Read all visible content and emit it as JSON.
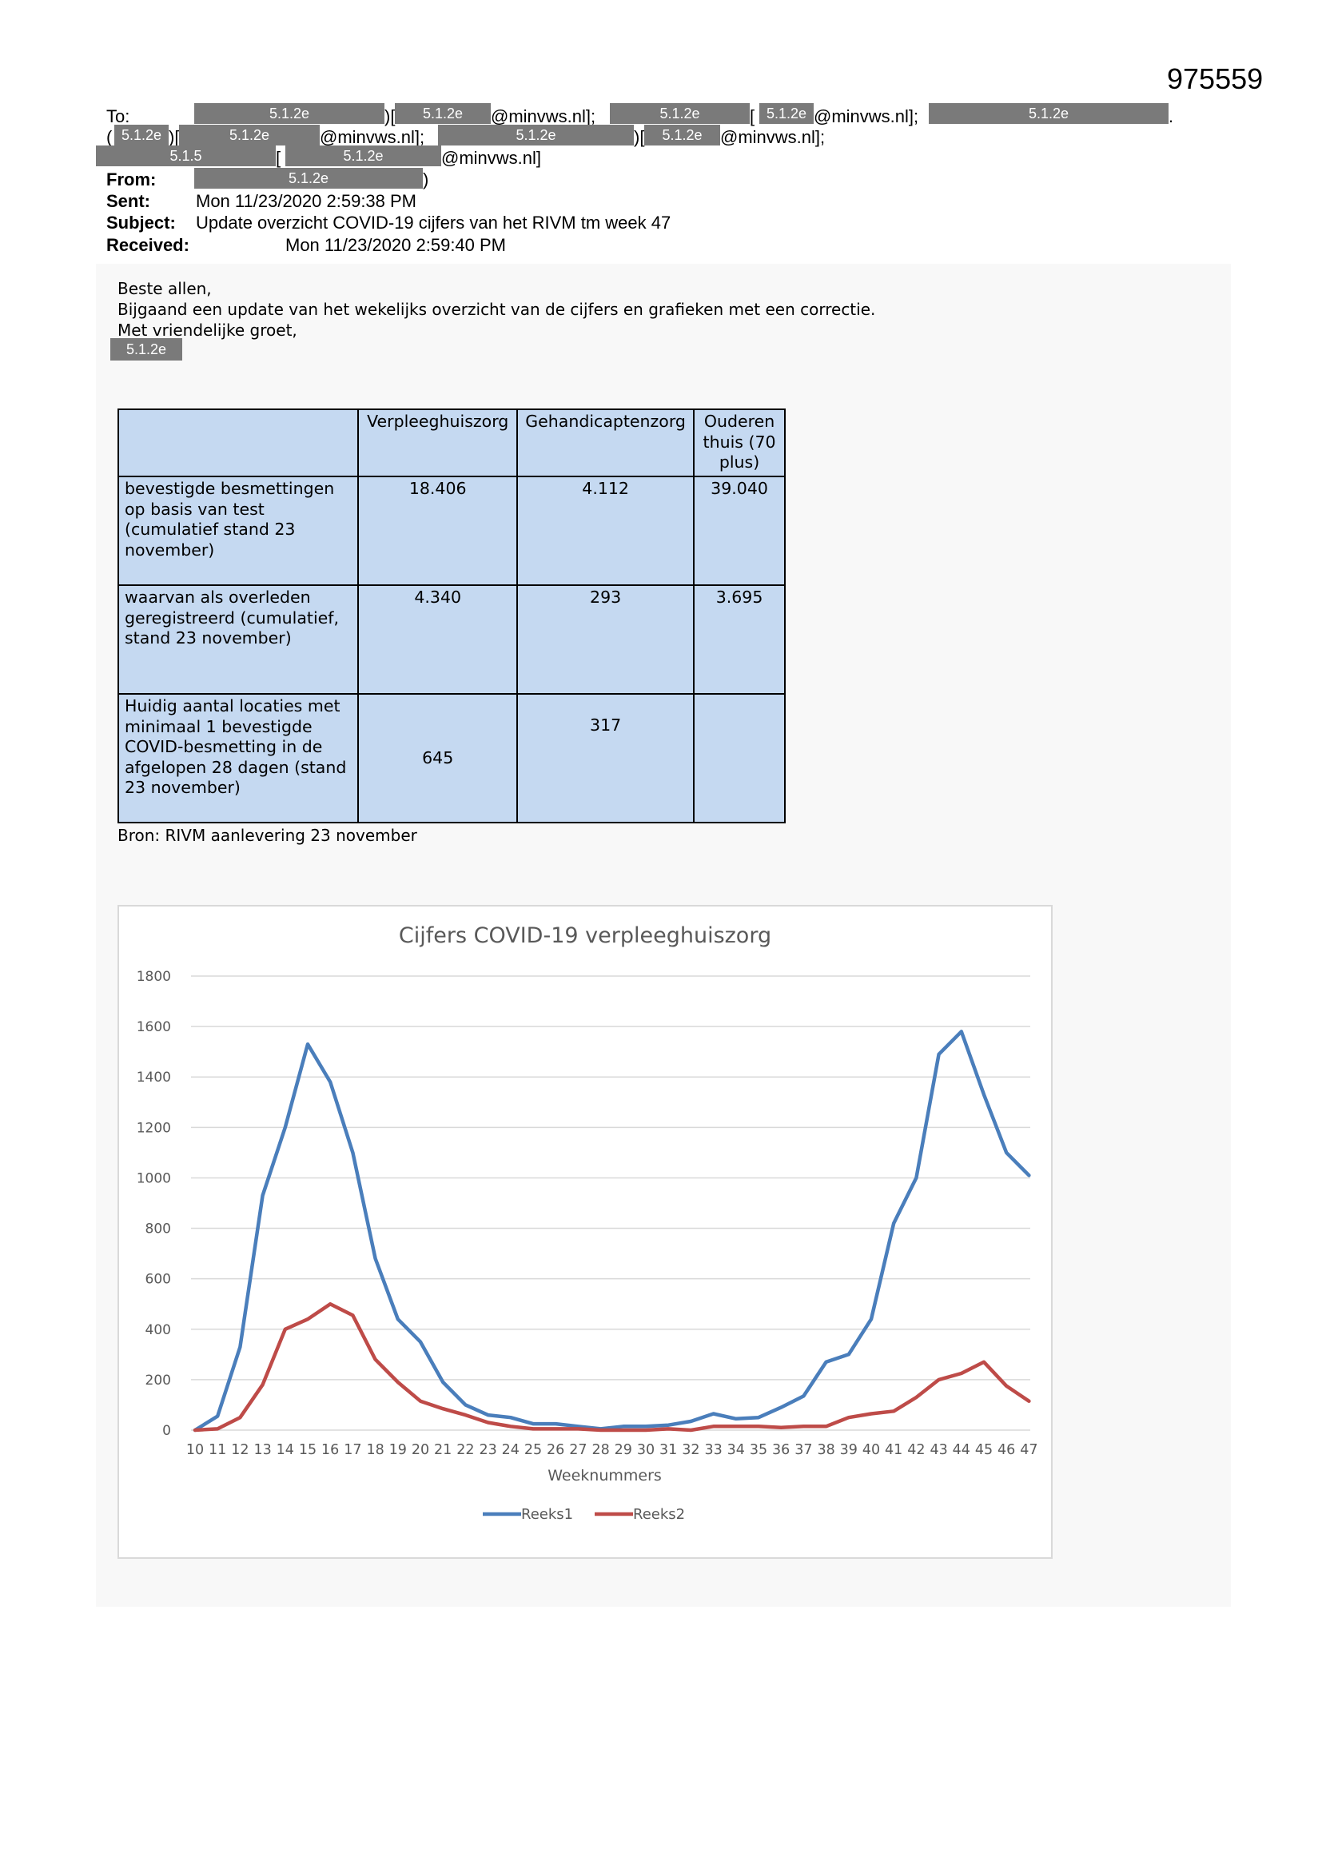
{
  "doc_number": "975559",
  "email": {
    "to_label": "To:",
    "from_label": "From:",
    "sent_label": "Sent:",
    "subject_label": "Subject:",
    "received_label": "Received:",
    "redaction_code": "5.1.2e",
    "redaction_code_alt": "5.1.5",
    "domain": "@minvws.nl];",
    "domain_end": "@minvws.nl]",
    "bracket_open": ")[",
    "bracket_semi": ")[",
    "paren_close": ")",
    "dot": ".",
    "open_paren": "(",
    "sent": "Mon 11/23/2020 2:59:38 PM",
    "subject": "Update overzicht COVID-19 cijfers van het RIVM tm week 47",
    "received": "Mon 11/23/2020 2:59:40 PM"
  },
  "body": {
    "greeting": "Beste allen,",
    "line1": "Bijgaand een update van het wekelijks overzicht van de cijfers en grafieken met een correctie.",
    "line2": "Met vriendelijke groet,"
  },
  "table": {
    "headers": [
      "",
      "Verpleeghuiszorg",
      "Gehandicaptenzorg",
      "Ouderen thuis (70 plus)"
    ],
    "rows": [
      {
        "label": "bevestigde besmettingen op basis van test (cumulatief stand 23 november)",
        "values": [
          "18.406",
          "4.112",
          "39.040"
        ]
      },
      {
        "label": "waarvan als overleden geregistreerd (cumulatief, stand 23 november)",
        "values": [
          "4.340",
          "293",
          "3.695"
        ]
      },
      {
        "label": "Huidig aantal locaties met minimaal 1 bevestigde COVID-besmetting in de afgelopen 28 dagen (stand 23 november)",
        "values": [
          "645",
          "317",
          ""
        ]
      }
    ],
    "source": "Bron: RIVM aanlevering 23 november"
  },
  "chart_data": {
    "type": "line",
    "title": "Cijfers COVID-19 verpleeghuiszorg",
    "xlabel": "Weeknummers",
    "ylabel": "",
    "ylim": [
      0,
      1800
    ],
    "yticks": [
      0,
      200,
      400,
      600,
      800,
      1000,
      1200,
      1400,
      1600,
      1800
    ],
    "grid": true,
    "legend_position": "bottom",
    "x": [
      10,
      11,
      12,
      13,
      14,
      15,
      16,
      17,
      18,
      19,
      20,
      21,
      22,
      23,
      24,
      25,
      26,
      27,
      28,
      29,
      30,
      31,
      32,
      33,
      34,
      35,
      36,
      37,
      38,
      39,
      40,
      41,
      42,
      43,
      44,
      45,
      46,
      47
    ],
    "series": [
      {
        "name": "Reeks1",
        "color": "#4a7ebb",
        "values": [
          0,
          55,
          330,
          930,
          1200,
          1530,
          1380,
          1100,
          680,
          440,
          350,
          190,
          100,
          60,
          50,
          25,
          25,
          15,
          5,
          15,
          15,
          20,
          35,
          65,
          45,
          50,
          90,
          135,
          270,
          300,
          440,
          820,
          1000,
          1490,
          1580,
          1330,
          1100,
          1010
        ]
      },
      {
        "name": "Reeks2",
        "color": "#be4b48",
        "values": [
          0,
          5,
          50,
          180,
          400,
          440,
          500,
          455,
          280,
          190,
          115,
          85,
          60,
          30,
          15,
          5,
          5,
          5,
          0,
          0,
          0,
          5,
          0,
          15,
          15,
          15,
          10,
          15,
          15,
          50,
          65,
          75,
          130,
          200,
          225,
          270,
          175,
          115
        ]
      }
    ]
  }
}
